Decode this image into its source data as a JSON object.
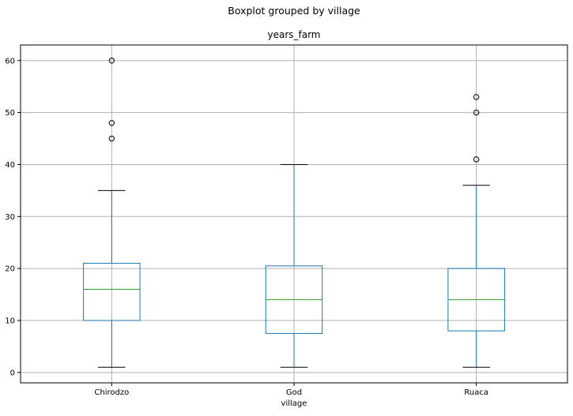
{
  "suptitle": "Boxplot grouped by village",
  "chart_data": {
    "type": "boxplot",
    "title": "years_farm",
    "xlabel": "village",
    "ylabel": "",
    "ylim": [
      -2,
      63
    ],
    "yticks": [
      0,
      10,
      20,
      30,
      40,
      50,
      60
    ],
    "grid": true,
    "categories": [
      "Chirodzo",
      "God",
      "Ruaca"
    ],
    "boxes": [
      {
        "category": "Chirodzo",
        "whisker_low": 1,
        "q1": 10,
        "median": 16,
        "q3": 21,
        "whisker_high": 35,
        "outliers": [
          45,
          48,
          60
        ]
      },
      {
        "category": "God",
        "whisker_low": 1,
        "q1": 7.5,
        "median": 14,
        "q3": 20.5,
        "whisker_high": 40,
        "outliers": []
      },
      {
        "category": "Ruaca",
        "whisker_low": 1,
        "q1": 8,
        "median": 14,
        "q3": 20,
        "whisker_high": 36,
        "outliers": [
          41,
          50,
          53
        ]
      }
    ]
  }
}
